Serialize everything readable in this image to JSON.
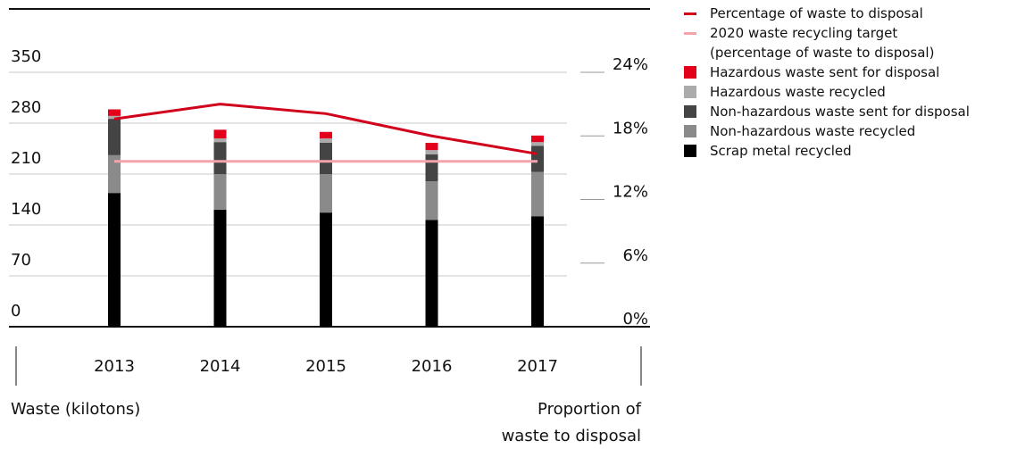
{
  "chart_data": {
    "type": "bar",
    "categories": [
      "2013",
      "2014",
      "2015",
      "2016",
      "2017"
    ],
    "series": [
      {
        "name": "Percentage of waste to disposal",
        "type": "line",
        "axis": "y2",
        "color": "#d0021b",
        "values": [
          19.6,
          21.0,
          20.1,
          18.0,
          16.3
        ]
      },
      {
        "name": "2020 waste recycling target (percentage of waste to disposal)",
        "type": "line",
        "axis": "y2",
        "color": "#f3a3aa",
        "values": [
          15.6,
          15.6,
          15.6,
          15.6,
          15.6
        ]
      },
      {
        "name": "Hazardous waste sent for disposal",
        "color": "#e2001a",
        "values": [
          9,
          12,
          9,
          10,
          9
        ]
      },
      {
        "name": "Hazardous waste recycled",
        "color": "#ababab",
        "values": [
          4,
          5,
          6,
          6,
          5
        ]
      },
      {
        "name": "Non-hazardous waste sent for disposal",
        "color": "#444444",
        "values": [
          50,
          44,
          43,
          37,
          36
        ]
      },
      {
        "name": "Non-hazardous waste recycled",
        "color": "#8a8a8a",
        "values": [
          52,
          49,
          53,
          53,
          61
        ]
      },
      {
        "name": "Scrap metal recycled",
        "color": "#000000",
        "values": [
          184,
          161,
          157,
          147,
          152
        ]
      }
    ],
    "ylabel": "Waste (kilotons)",
    "y2label": [
      "Proportion of",
      "waste to disposal"
    ],
    "ylim": [
      0,
      350
    ],
    "yticks": [
      0,
      70,
      140,
      210,
      280,
      350
    ],
    "y2lim": [
      0,
      24
    ],
    "y2ticks": [
      {
        "value": 0,
        "label": "0%"
      },
      {
        "value": 6,
        "label": "6%"
      },
      {
        "value": 12,
        "label": "12%"
      },
      {
        "value": 18,
        "label": "18%"
      },
      {
        "value": 24,
        "label": "24%"
      }
    ],
    "grid": true
  }
}
